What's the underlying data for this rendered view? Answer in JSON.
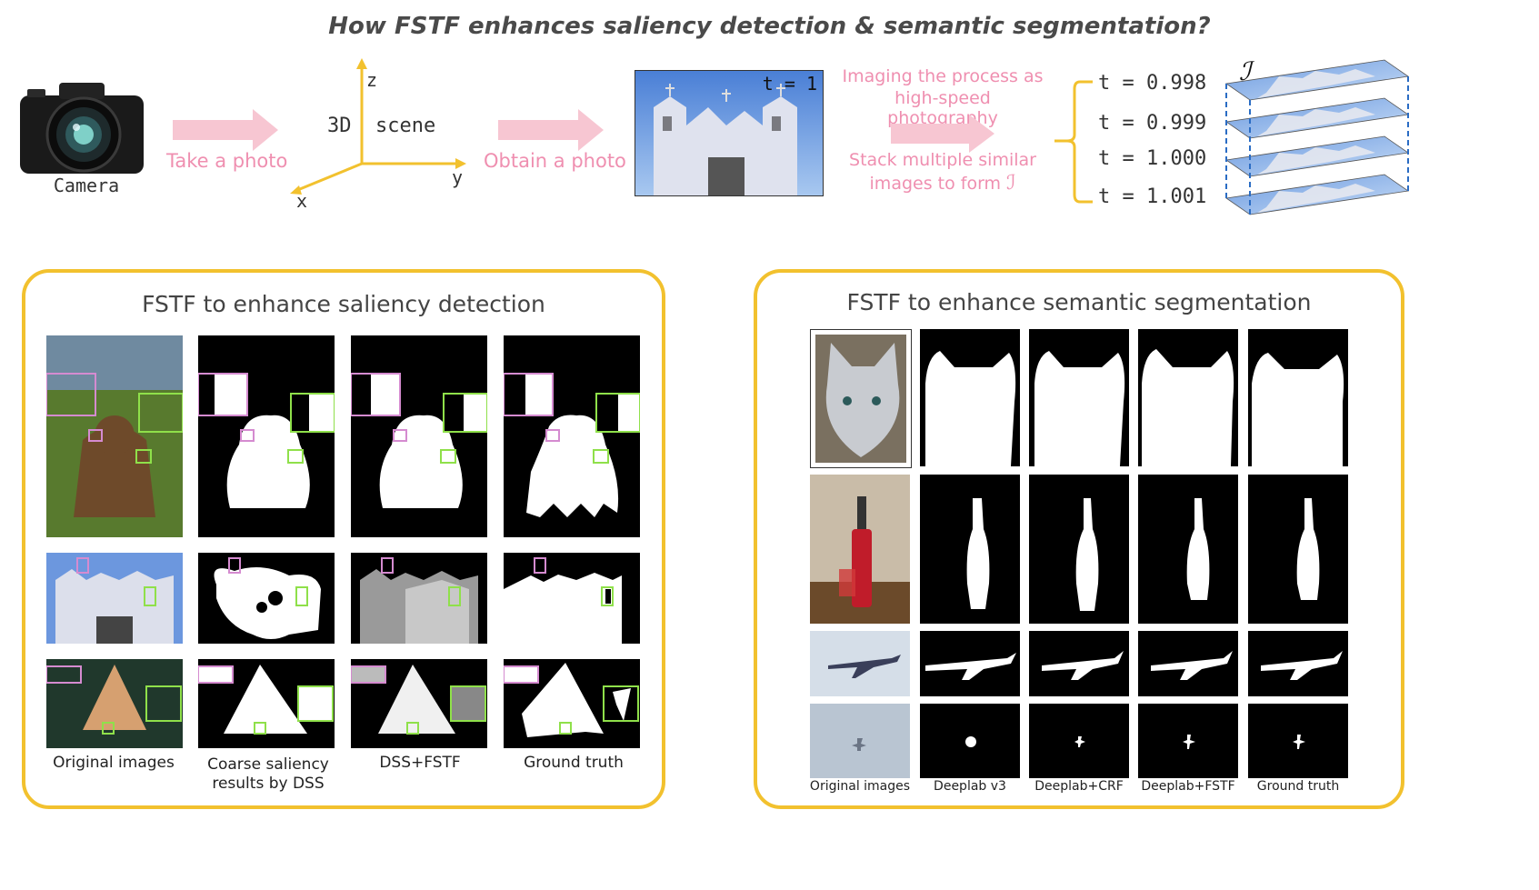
{
  "title": "How FSTF enhances saliency detection & semantic segmentation?",
  "top": {
    "camera_label": "Camera",
    "take_photo": "Take a photo",
    "obtain_photo": "Obtain a photo",
    "axis_z": "z",
    "axis_y": "y",
    "axis_x": "x",
    "scene_label": "3D  scene",
    "photo_time": "t = 1",
    "imaging_line1": "Imaging the process as",
    "imaging_line2": "high-speed photography",
    "stack_line1": "Stack multiple similar",
    "stack_line2": "images to form",
    "stack_symbol": "ℐ",
    "times": [
      "t = 0.998",
      "t = 0.999",
      "t = 1.000",
      "t = 1.001"
    ],
    "stack_label": "ℐ"
  },
  "saliency": {
    "title": "FSTF to enhance saliency detection",
    "captions": {
      "original": "Original images",
      "coarse_line1": "Coarse saliency",
      "coarse_line2": "results by DSS",
      "dss_fstf": "DSS+FSTF",
      "ground_truth": "Ground truth"
    }
  },
  "segmentation": {
    "title": "FSTF to enhance semantic segmentation",
    "captions": {
      "original": "Original images",
      "deeplab": "Deeplab v3",
      "crf": "Deeplab+CRF",
      "fstf": "Deeplab+FSTF",
      "ground_truth": "Ground truth"
    }
  },
  "colors": {
    "accent_yellow": "#f2c12e",
    "pink_text": "#ef8fb0",
    "pink_arrow": "#f7c6d2",
    "axis_yellow": "#f2c12e",
    "highlight_pink": "#d58bd0",
    "highlight_green": "#8fe04a",
    "stack_dash": "#2a6cc4"
  }
}
